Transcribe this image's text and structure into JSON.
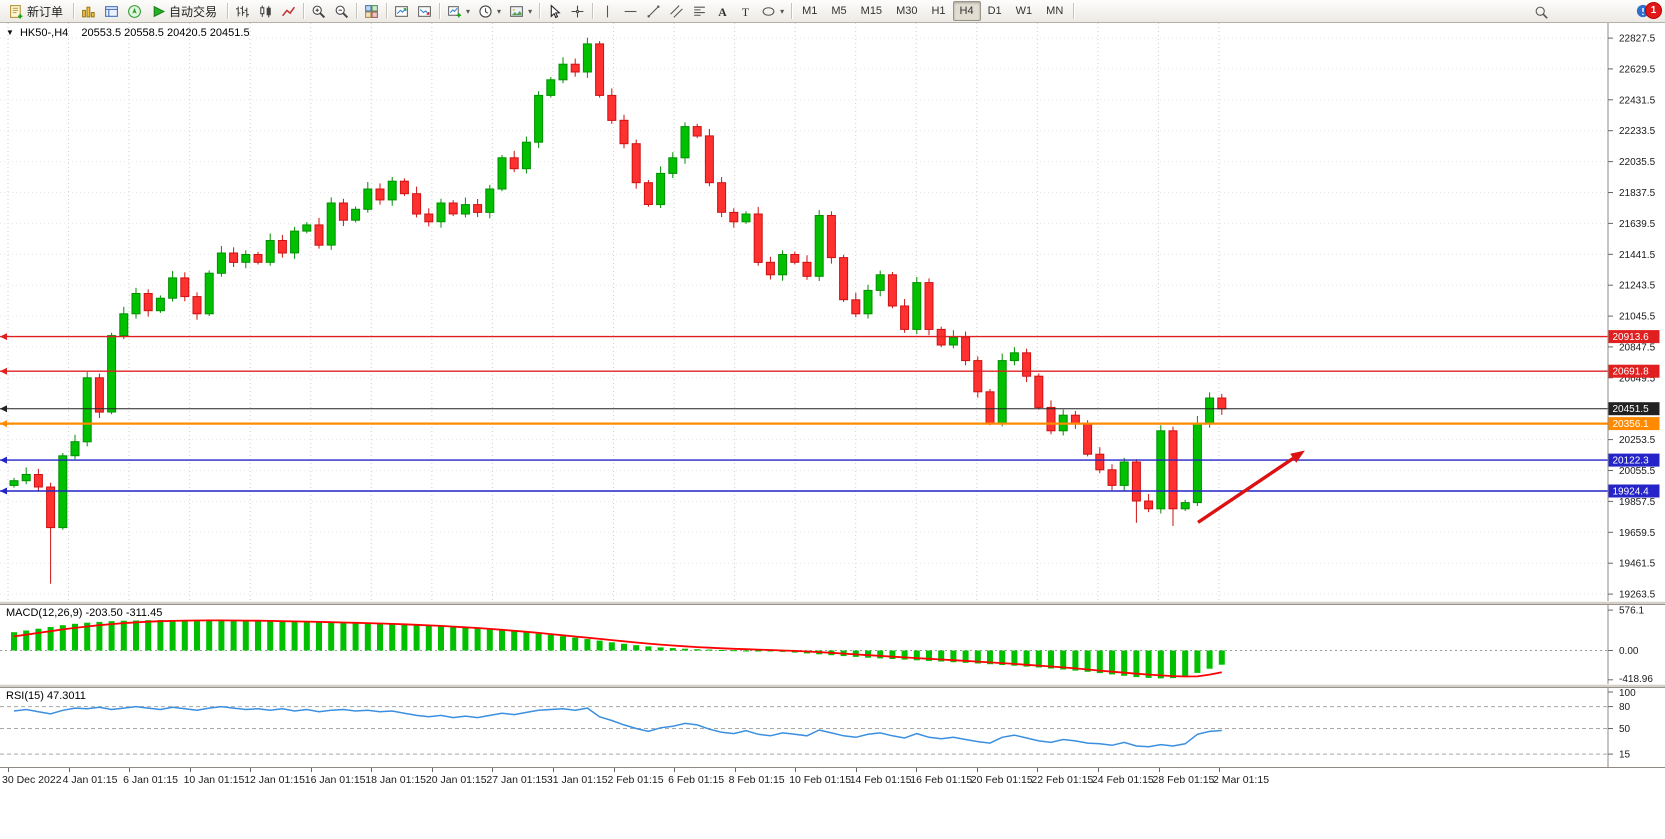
{
  "window": {
    "badge_count": "1"
  },
  "toolbar": {
    "active_timeframe": "H4",
    "items": [
      {
        "t": "b",
        "name": "new-order-button",
        "icon": "new-order-icon",
        "label": "新订单"
      },
      {
        "t": "s"
      },
      {
        "t": "b",
        "name": "market-watch-button",
        "icon": "market-watch-icon"
      },
      {
        "t": "b",
        "name": "data-window-button",
        "icon": "data-window-icon"
      },
      {
        "t": "b",
        "name": "navigator-button",
        "icon": "navigator-icon"
      },
      {
        "t": "b",
        "name": "autotrading-button",
        "icon": "autotrading-icon",
        "label": "自动交易"
      },
      {
        "t": "s"
      },
      {
        "t": "b",
        "name": "bar-chart-button",
        "icon": "bar-chart-icon"
      },
      {
        "t": "b",
        "name": "candle-chart-button",
        "icon": "candle-chart-icon"
      },
      {
        "t": "b",
        "name": "line-chart-button",
        "icon": "line-chart-icon"
      },
      {
        "t": "s"
      },
      {
        "t": "b",
        "name": "zoom-in-button",
        "icon": "zoom-in-icon"
      },
      {
        "t": "b",
        "name": "zoom-out-button",
        "icon": "zoom-out-icon"
      },
      {
        "t": "s"
      },
      {
        "t": "b",
        "name": "tile-windows-button",
        "icon": "tile-windows-icon"
      },
      {
        "t": "s"
      },
      {
        "t": "b",
        "name": "arrange-up-button",
        "icon": "chart-up-icon"
      },
      {
        "t": "b",
        "name": "arrange-down-button",
        "icon": "chart-down-icon"
      },
      {
        "t": "s"
      },
      {
        "t": "b",
        "name": "new-chart-button",
        "icon": "new-chart-icon",
        "dd": true
      },
      {
        "t": "b",
        "name": "period-selector-button",
        "icon": "clock-icon",
        "dd": true
      },
      {
        "t": "b",
        "name": "template-button",
        "icon": "template-icon",
        "dd": true
      },
      {
        "t": "s"
      },
      {
        "t": "b",
        "name": "cursor-button",
        "icon": "cursor-icon"
      },
      {
        "t": "b",
        "name": "crosshair-button",
        "icon": "crosshair-icon"
      },
      {
        "t": "s"
      },
      {
        "t": "b",
        "name": "vertical-line-button",
        "icon": "vline-icon"
      },
      {
        "t": "b",
        "name": "horizontal-line-button",
        "icon": "hline-icon"
      },
      {
        "t": "b",
        "name": "trendline-button",
        "icon": "trendline-icon"
      },
      {
        "t": "b",
        "name": "channel-button",
        "icon": "channel-icon"
      },
      {
        "t": "b",
        "name": "fibonacci-button",
        "icon": "fibonacci-icon"
      },
      {
        "t": "b",
        "name": "text-button",
        "icon": "text-icon"
      },
      {
        "t": "b",
        "name": "label-button",
        "icon": "label-icon"
      },
      {
        "t": "b",
        "name": "shapes-button",
        "icon": "shapes-icon",
        "dd": true
      },
      {
        "t": "s"
      },
      {
        "t": "tf",
        "name": "tf-m1-button",
        "label": "M1"
      },
      {
        "t": "tf",
        "name": "tf-m5-button",
        "label": "M5"
      },
      {
        "t": "tf",
        "name": "tf-m15-button",
        "label": "M15"
      },
      {
        "t": "tf",
        "name": "tf-m30-button",
        "label": "M30"
      },
      {
        "t": "tf",
        "name": "tf-h1-button",
        "label": "H1"
      },
      {
        "t": "tf",
        "name": "tf-h4-button",
        "label": "H4"
      },
      {
        "t": "tf",
        "name": "tf-d1-button",
        "label": "D1"
      },
      {
        "t": "tf",
        "name": "tf-w1-button",
        "label": "W1"
      },
      {
        "t": "tf",
        "name": "tf-mn-button",
        "label": "MN"
      },
      {
        "t": "s"
      }
    ]
  },
  "chart": {
    "header": {
      "collapse_icon": "▼",
      "symbol_period": "HK50-,H4",
      "ohlc": "20553.5 20558.5 20420.5 20451.5"
    }
  },
  "macd": {
    "header": "MACD(12,26,9) -203.50 -311.45",
    "axis": [
      "576.1",
      "0.00",
      "-418.96"
    ]
  },
  "rsi": {
    "header": "RSI(15) 47.3011",
    "axis": [
      "100",
      "80",
      "50",
      "15"
    ]
  },
  "chart_data": {
    "type": "candlestick",
    "symbol": "HK50-",
    "period": "H4",
    "ylim": [
      19219,
      22924
    ],
    "colors": {
      "candle_up": "#00C000",
      "candle_up_stroke": "#008f00",
      "candle_down": "#FF3030",
      "candle_down_stroke": "#cc1212",
      "macd_hist": "#00C000",
      "macd_signal": "#ff0000",
      "rsi_line": "#3b8fe0",
      "grid": "#d9d9d9"
    },
    "price_axis": [
      "22827.5",
      "22629.5",
      "22431.5",
      "22233.5",
      "22035.5",
      "21837.5",
      "21639.5",
      "21441.5",
      "21243.5",
      "21045.5",
      "20847.5",
      "20649.5",
      "20451.5",
      "20253.5",
      "20055.5",
      "19857.5",
      "19659.5",
      "19461.5",
      "19263.5"
    ],
    "time_axis": [
      "30 Dec 2022",
      "4 Jan 01:15",
      "6 Jan 01:15",
      "10 Jan 01:15",
      "12 Jan 01:15",
      "16 Jan 01:15",
      "18 Jan 01:15",
      "20 Jan 01:15",
      "27 Jan 01:15",
      "31 Jan 01:15",
      "2 Feb 01:15",
      "6 Feb 01:15",
      "8 Feb 01:15",
      "10 Feb 01:15",
      "14 Feb 01:15",
      "16 Feb 01:15",
      "20 Feb 01:15",
      "22 Feb 01:15",
      "24 Feb 01:15",
      "28 Feb 01:15",
      "2 Mar 01:15"
    ],
    "candles": {
      "first_open": 19960,
      "closes": [
        19990,
        20030,
        19950,
        19690,
        20150,
        20240,
        20650,
        20430,
        20920,
        21060,
        21190,
        21080,
        21160,
        21290,
        21170,
        21060,
        21320,
        21450,
        21390,
        21440,
        21390,
        21530,
        21450,
        21590,
        21630,
        21500,
        21770,
        21660,
        21730,
        21860,
        21790,
        21910,
        21830,
        21700,
        21650,
        21770,
        21700,
        21760,
        21710,
        21860,
        22060,
        21990,
        22160,
        22460,
        22560,
        22660,
        22610,
        22790,
        22460,
        22300,
        22150,
        21900,
        21760,
        21960,
        22060,
        22260,
        22200,
        21900,
        21710,
        21650,
        21700,
        21390,
        21310,
        21440,
        21390,
        21300,
        21690,
        21420,
        21150,
        21060,
        21210,
        21310,
        21110,
        20960,
        21260,
        20960,
        20860,
        20910,
        20760,
        20560,
        20360,
        20760,
        20810,
        20660,
        20460,
        20310,
        20410,
        20360,
        20160,
        20060,
        19960,
        20110,
        19860,
        19810,
        20310,
        19810,
        19850,
        20360,
        20520,
        20450
      ],
      "wick_overrides": {
        "3": {
          "low": 19330
        },
        "47": {
          "high": 22830
        },
        "92": {
          "low": 19720
        },
        "95": {
          "low": 19700
        }
      }
    },
    "levels": [
      {
        "label": "20913.6",
        "price": 20913.6,
        "color": "#e02020",
        "width": 1.4
      },
      {
        "label": "20691.8",
        "price": 20691.8,
        "color": "#e02020",
        "width": 1.4
      },
      {
        "label": "20451.5",
        "price": 20451.5,
        "color": "#222222",
        "width": 1
      },
      {
        "label": "20356.1",
        "price": 20356.1,
        "color": "#ff8a00",
        "width": 2.2
      },
      {
        "label": "20122.3",
        "price": 20122.3,
        "color": "#2424c8",
        "width": 1.4
      },
      {
        "label": "19924.4",
        "price": 19924.4,
        "color": "#2424c8",
        "width": 1.4
      }
    ],
    "annotation_arrow": {
      "from_x": 0.745,
      "from_price": 19723,
      "to_x": 0.8115,
      "to_price": 20184,
      "color": "#dd1111"
    },
    "macd": {
      "ylim": [
        -450,
        620
      ],
      "hist": [
        260,
        285,
        310,
        335,
        360,
        380,
        396,
        408,
        417,
        424,
        428,
        431,
        433,
        433,
        432,
        432,
        433,
        432,
        430,
        427,
        424,
        420,
        416,
        412,
        408,
        404,
        400,
        396,
        392,
        388,
        383,
        378,
        372,
        365,
        357,
        348,
        338,
        327,
        315,
        302,
        288,
        273,
        257,
        240,
        222,
        203,
        183,
        162,
        140,
        117,
        95,
        75,
        58,
        44,
        33,
        25,
        18,
        12,
        7,
        3,
        0,
        -5,
        -12,
        -20,
        -30,
        -42,
        -55,
        -68,
        -80,
        -92,
        -103,
        -113,
        -122,
        -131,
        -140,
        -149,
        -158,
        -167,
        -176,
        -186,
        -196,
        -207,
        -218,
        -230,
        -243,
        -257,
        -272,
        -288,
        -305,
        -323,
        -342,
        -362,
        -380,
        -392,
        -398,
        -395,
        -365,
        -320,
        -260,
        -203.5
      ],
      "signal": [
        200,
        225,
        250,
        275,
        300,
        322,
        342,
        360,
        376,
        390,
        401,
        410,
        417,
        422,
        426,
        428,
        429,
        429,
        428,
        426,
        424,
        421,
        418,
        415,
        411,
        407,
        403,
        399,
        395,
        390,
        385,
        379,
        373,
        366,
        358,
        350,
        341,
        331,
        320,
        308,
        295,
        281,
        266,
        250,
        233,
        216,
        199,
        182,
        165,
        148,
        131,
        114,
        98,
        84,
        71,
        59,
        48,
        39,
        31,
        24,
        18,
        12,
        6,
        0,
        -7,
        -15,
        -24,
        -34,
        -45,
        -56,
        -67,
        -78,
        -89,
        -99,
        -109,
        -119,
        -129,
        -139,
        -149,
        -159,
        -170,
        -181,
        -192,
        -204,
        -216,
        -229,
        -242,
        -256,
        -271,
        -287,
        -303,
        -318,
        -332,
        -345,
        -356,
        -366,
        -371,
        -370,
        -345,
        -311.45
      ]
    },
    "rsi": {
      "ylim": [
        0,
        100
      ],
      "levels": [
        80,
        50,
        15
      ],
      "values": [
        74,
        76,
        73,
        70,
        75,
        78,
        77,
        79,
        76,
        78,
        80,
        78,
        76,
        79,
        77,
        75,
        78,
        80,
        78,
        76,
        77,
        75,
        77,
        74,
        76,
        73,
        75,
        76,
        74,
        75,
        73,
        74,
        71,
        68,
        66,
        68,
        65,
        67,
        65,
        68,
        71,
        69,
        72,
        75,
        76,
        77,
        75,
        78,
        66,
        61,
        55,
        50,
        46,
        51,
        53,
        57,
        55,
        49,
        45,
        43,
        47,
        42,
        40,
        44,
        42,
        40,
        48,
        44,
        40,
        38,
        42,
        44,
        40,
        37,
        43,
        38,
        36,
        38,
        35,
        32,
        30,
        38,
        41,
        37,
        33,
        31,
        35,
        33,
        30,
        29,
        27,
        31,
        26,
        25,
        28,
        26,
        29,
        42,
        46,
        47.3
      ]
    }
  }
}
